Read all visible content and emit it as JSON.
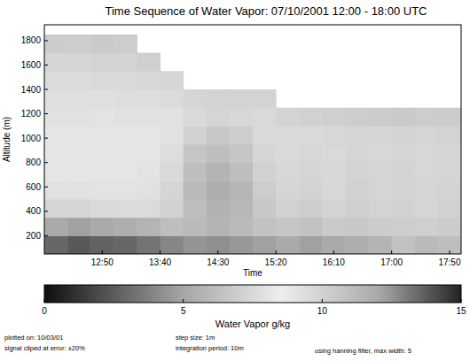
{
  "chart_data": {
    "type": "heatmap",
    "title": "Time Sequence of Water Vapor: 07/10/2001 12:00 - 18:00 UTC",
    "x_label": "Time",
    "y_label": "Altitude (m)",
    "xlim": [
      0,
      360
    ],
    "xticks": [
      {
        "value": 50,
        "label": "12:50"
      },
      {
        "value": 100,
        "label": "13:40"
      },
      {
        "value": 150,
        "label": "14:30"
      },
      {
        "value": 200,
        "label": "15:20"
      },
      {
        "value": 250,
        "label": "16:10"
      },
      {
        "value": 300,
        "label": "17:00"
      },
      {
        "value": 350,
        "label": "17:50"
      }
    ],
    "ylim": [
      50,
      1930
    ],
    "yticks": [
      200,
      400,
      600,
      800,
      1000,
      1200,
      1400,
      1600,
      1800
    ],
    "grid": false,
    "x_edges": [
      0,
      20,
      40,
      60,
      80,
      100,
      120,
      140,
      160,
      180,
      200,
      220,
      240,
      260,
      280,
      300,
      320,
      340,
      360
    ],
    "y_edges": [
      50,
      200,
      350,
      500,
      650,
      800,
      950,
      1100,
      1250,
      1400,
      1550,
      1700,
      1850
    ],
    "cells": [
      [
        13.5,
        12.0,
        9.8,
        9.2,
        9.0,
        9.0,
        9.0,
        9.2,
        9.3,
        9.5,
        9.8,
        10.3
      ],
      [
        13.8,
        12.2,
        9.8,
        9.2,
        9.0,
        9.0,
        9.0,
        9.2,
        9.3,
        9.5,
        9.8,
        10.2
      ],
      [
        13.6,
        12.0,
        9.6,
        9.1,
        9.0,
        9.0,
        9.0,
        9.1,
        9.3,
        9.6,
        9.9,
        10.4
      ],
      [
        13.5,
        11.8,
        9.5,
        9.1,
        9.0,
        9.0,
        9.0,
        9.2,
        9.4,
        9.6,
        9.9,
        10.2
      ],
      [
        13.2,
        11.5,
        9.5,
        9.2,
        9.1,
        9.0,
        9.0,
        9.2,
        9.4,
        9.7,
        10.1,
        null
      ],
      [
        12.8,
        11.0,
        10.0,
        9.8,
        9.6,
        9.4,
        9.2,
        9.2,
        9.5,
        9.8,
        null,
        null
      ],
      [
        12.5,
        11.2,
        11.0,
        11.2,
        11.0,
        10.6,
        10.0,
        9.6,
        9.8,
        null,
        null,
        null
      ],
      [
        12.6,
        11.5,
        11.6,
        11.8,
        11.5,
        11.0,
        10.5,
        9.8,
        9.9,
        null,
        null,
        null
      ],
      [
        12.4,
        11.2,
        11.3,
        11.4,
        11.0,
        10.6,
        10.2,
        9.7,
        9.9,
        null,
        null,
        null
      ],
      [
        12.2,
        10.8,
        10.5,
        10.2,
        10.0,
        9.8,
        9.6,
        9.6,
        9.9,
        null,
        null,
        null
      ],
      [
        12.0,
        10.6,
        10.0,
        9.8,
        9.7,
        9.6,
        9.6,
        9.9,
        null,
        null,
        null,
        null
      ],
      [
        12.2,
        10.8,
        10.2,
        9.9,
        9.8,
        9.7,
        9.6,
        10.0,
        null,
        null,
        null,
        null
      ],
      [
        12.0,
        10.4,
        9.9,
        9.7,
        9.7,
        9.6,
        9.7,
        10.1,
        null,
        null,
        null,
        null
      ],
      [
        11.8,
        10.5,
        10.1,
        10.0,
        9.9,
        9.8,
        9.8,
        10.2,
        null,
        null,
        null,
        null
      ],
      [
        11.5,
        10.3,
        9.9,
        9.8,
        9.8,
        9.7,
        9.8,
        10.3,
        null,
        null,
        null,
        null
      ],
      [
        10.8,
        10.2,
        10.0,
        9.9,
        9.9,
        9.8,
        9.9,
        10.4,
        null,
        null,
        null,
        null
      ],
      [
        11.2,
        10.1,
        9.8,
        9.8,
        9.7,
        9.7,
        9.8,
        10.2,
        null,
        null,
        null,
        null
      ],
      [
        11.0,
        10.3,
        10.0,
        9.9,
        9.8,
        9.8,
        9.9,
        10.3,
        null,
        null,
        null,
        null
      ]
    ],
    "colorbar": {
      "label": "Water Vapor g/kg",
      "range": [
        0,
        15
      ],
      "ticks": [
        0,
        5,
        10,
        15
      ]
    },
    "annotations": [
      "plotted on: 10/03/01",
      "signal cliped at error: ±20%",
      "step size: 1m",
      "integration period: 10m",
      "using hanning filter, max width: 5"
    ]
  }
}
